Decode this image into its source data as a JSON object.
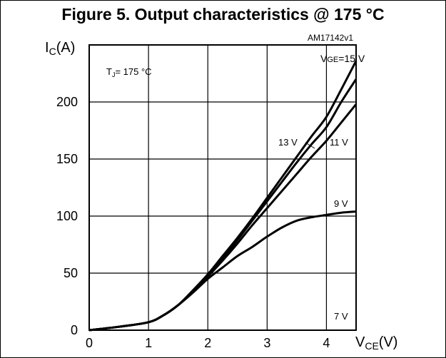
{
  "chart_data": {
    "type": "line",
    "title": "Figure 5. Output characteristics @ 175 °C",
    "figure_id": "AM17142v1",
    "ylabel_main": "I",
    "ylabel_sub": "C",
    "ylabel_unit": "(A)",
    "xlabel_main": "V",
    "xlabel_sub": "CE",
    "xlabel_unit": "(V)",
    "condition_main": "T",
    "condition_sub": "J",
    "condition_value": "= 175 °C",
    "xlim": [
      0,
      4.5
    ],
    "ylim": [
      0,
      250
    ],
    "x_ticks": [
      "0",
      "1",
      "2",
      "3",
      "4"
    ],
    "y_ticks": [
      "0",
      "50",
      "100",
      "150",
      "200"
    ],
    "grid": true,
    "series": [
      {
        "name": "VGE=15 V",
        "label_main": "V",
        "label_sub": "GE",
        "label_rest": "=15 V",
        "x": [
          0,
          0.5,
          1.0,
          1.25,
          1.5,
          1.75,
          2.0,
          2.25,
          2.5,
          2.75,
          3.0,
          3.25,
          3.5,
          3.75,
          4.0,
          4.25,
          4.5
        ],
        "y": [
          0,
          3,
          7,
          13,
          22,
          35,
          49,
          65,
          81,
          98,
          116,
          134,
          152,
          170,
          187,
          211,
          236
        ]
      },
      {
        "name": "13 V",
        "label": "13 V",
        "x": [
          0,
          0.5,
          1.0,
          1.25,
          1.5,
          1.75,
          2.0,
          2.25,
          2.5,
          2.75,
          3.0,
          3.25,
          3.5,
          3.75,
          4.0,
          4.25,
          4.5
        ],
        "y": [
          0,
          3,
          7,
          13,
          22,
          34,
          48,
          63,
          79,
          96,
          113,
          130,
          147,
          163,
          178,
          200,
          220
        ]
      },
      {
        "name": "11 V",
        "label": "11 V",
        "x": [
          0,
          0.5,
          1.0,
          1.25,
          1.5,
          1.75,
          2.0,
          2.25,
          2.5,
          2.75,
          3.0,
          3.25,
          3.5,
          3.75,
          4.0,
          4.25,
          4.5
        ],
        "y": [
          0,
          3,
          7,
          13,
          22,
          34,
          47,
          61,
          76,
          92,
          107,
          122,
          137,
          152,
          166,
          182,
          198
        ]
      },
      {
        "name": "9 V",
        "label": "9 V",
        "x": [
          0,
          0.5,
          1.0,
          1.25,
          1.5,
          1.75,
          2.0,
          2.25,
          2.5,
          2.75,
          3.0,
          3.25,
          3.5,
          3.75,
          4.0,
          4.25,
          4.5
        ],
        "y": [
          0,
          3,
          7,
          13,
          22,
          33,
          45,
          55,
          65,
          73,
          82,
          90,
          96,
          99,
          101,
          103,
          104
        ]
      },
      {
        "name": "7 V",
        "label": "7 V",
        "x": [],
        "y": []
      }
    ]
  }
}
